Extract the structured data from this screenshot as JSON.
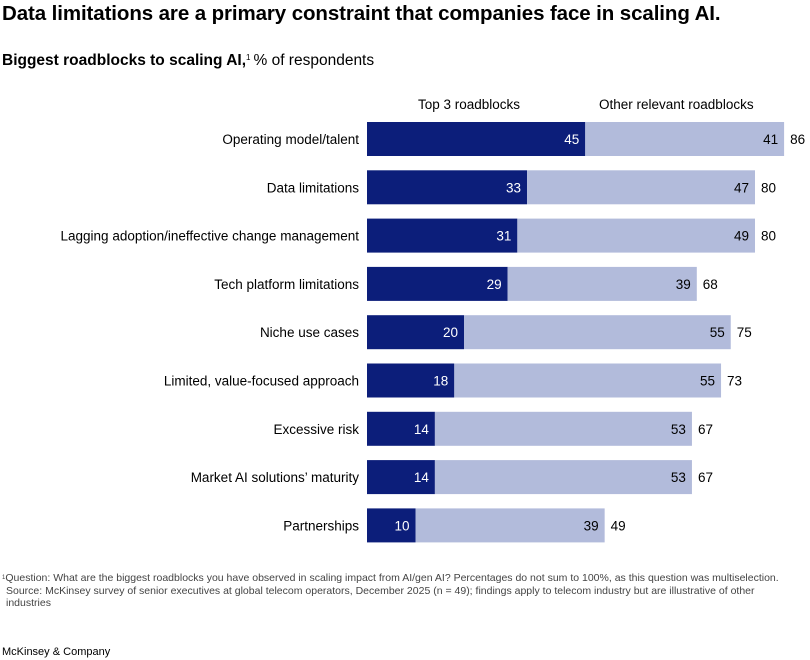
{
  "headline": "Data limitations are a primary constraint that companies face in scaling AI.",
  "subtitle": {
    "bold": "Biggest roadblocks to scaling AI,",
    "footnote_mark": "1",
    "rest": "% of respondents"
  },
  "legend": {
    "top3": "Top 3 roadblocks",
    "other": "Other relevant roadblocks"
  },
  "colors": {
    "top3": "#0c1e7a",
    "other": "#b2bbdb"
  },
  "chart_data": {
    "type": "bar",
    "orientation": "horizontal",
    "stacked": true,
    "categories": [
      "Operating model/talent",
      "Data limitations",
      "Lagging adoption/ineffective change management",
      "Tech platform limitations",
      "Niche use cases",
      "Limited, value-focused approach",
      "Excessive risk",
      "Market AI solutions’ maturity",
      "Partnerships"
    ],
    "series": [
      {
        "name": "Top 3 roadblocks",
        "values": [
          45,
          33,
          31,
          29,
          20,
          18,
          14,
          14,
          10
        ]
      },
      {
        "name": "Other relevant roadblocks",
        "values": [
          41,
          47,
          49,
          39,
          55,
          55,
          53,
          53,
          39
        ]
      }
    ],
    "totals": [
      86,
      80,
      80,
      68,
      75,
      73,
      67,
      67,
      49
    ],
    "title": "Biggest roadblocks to scaling AI",
    "xlabel": "",
    "ylabel": "",
    "grid": false,
    "legend_position": "top"
  },
  "footnote": {
    "mark": "1",
    "question": "Question: What are the biggest roadblocks you have observed in scaling impact from AI/gen AI? Percentages do not sum to 100%, as this question was multiselection.",
    "source": "Source: McKinsey survey of senior executives at global telecom operators, December 2025 (n = 49); findings apply to telecom industry but are illustrative of other industries"
  },
  "brand": "McKinsey & Company"
}
